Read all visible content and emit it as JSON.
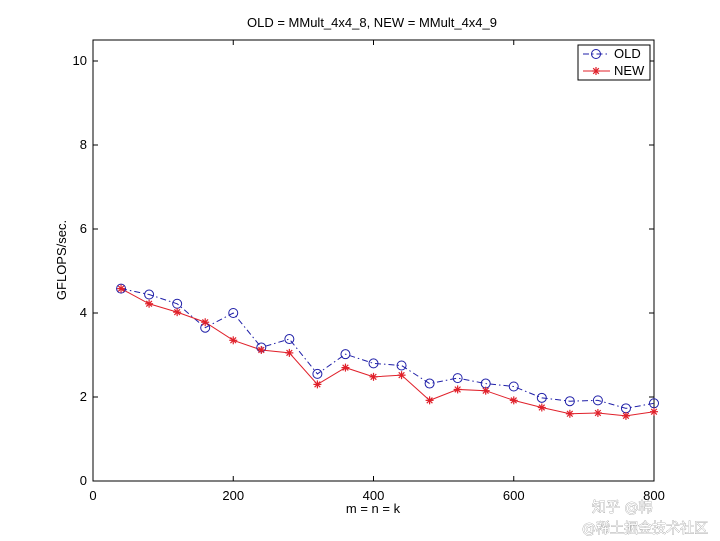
{
  "chart_data": {
    "type": "line",
    "title": "OLD = MMult_4x4_8, NEW = MMult_4x4_9",
    "xlabel": "m = n = k",
    "ylabel": "GFLOPS/sec.",
    "xlim": [
      0,
      800
    ],
    "ylim": [
      0,
      10.5
    ],
    "xticks": [
      0,
      200,
      400,
      600,
      800
    ],
    "yticks": [
      0,
      2,
      4,
      6,
      8,
      10
    ],
    "grid": false,
    "legend_position": "top-right",
    "x": [
      40,
      80,
      120,
      160,
      200,
      240,
      280,
      320,
      360,
      400,
      440,
      480,
      520,
      560,
      600,
      640,
      680,
      720,
      760,
      800
    ],
    "series": [
      {
        "name": "OLD",
        "color": "#1f1fa8",
        "line_style": "dash-dot",
        "marker": "circle",
        "values": [
          4.58,
          4.44,
          4.22,
          3.65,
          4.0,
          3.18,
          3.38,
          2.55,
          3.02,
          2.8,
          2.75,
          2.32,
          2.45,
          2.32,
          2.25,
          1.98,
          1.9,
          1.92,
          1.73,
          1.85
        ]
      },
      {
        "name": "NEW",
        "color": "#e0202a",
        "line_style": "solid",
        "marker": "asterisk",
        "values": [
          4.58,
          4.22,
          4.02,
          3.78,
          3.35,
          3.12,
          3.05,
          2.3,
          2.7,
          2.48,
          2.52,
          1.92,
          2.18,
          2.15,
          1.92,
          1.75,
          1.6,
          1.62,
          1.55,
          1.65
        ]
      }
    ]
  },
  "watermark": {
    "line1": "知乎 @韩",
    "line2": "@稀土掘金技术社区"
  }
}
